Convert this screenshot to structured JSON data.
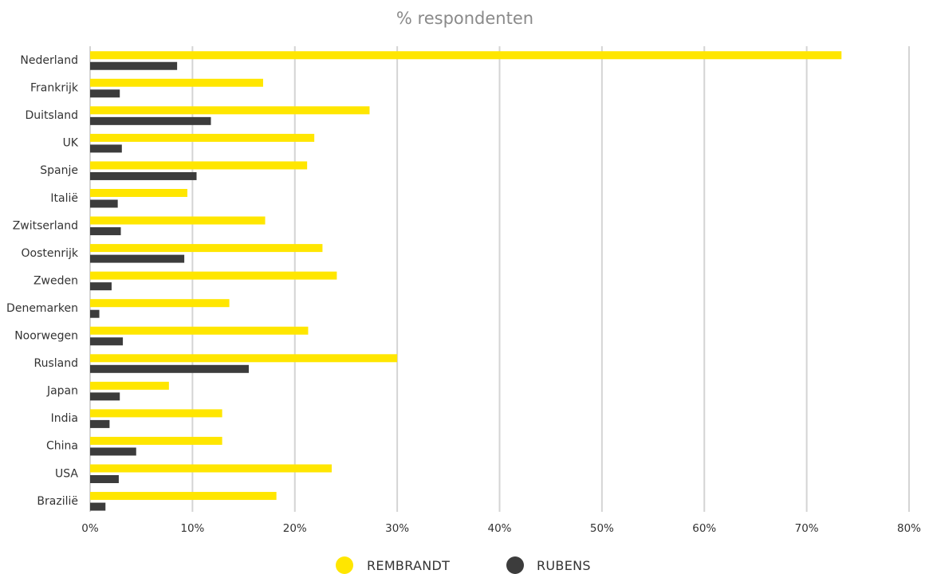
{
  "chart_data": {
    "type": "bar",
    "orientation": "horizontal",
    "title": "% respondenten",
    "xlabel": "",
    "ylabel": "",
    "categories": [
      "Nederland",
      "Frankrijk",
      "Duitsland",
      "UK",
      "Spanje",
      "Italië",
      "Zwitserland",
      "Oostenrijk",
      "Zweden",
      "Denemarken",
      "Noorwegen",
      "Rusland",
      "Japan",
      "India",
      "China",
      "USA",
      "Brazilië"
    ],
    "series": [
      {
        "name": "REMBRANDT",
        "color": "#ffe600",
        "values": [
          73.4,
          16.9,
          27.3,
          21.9,
          21.2,
          9.5,
          17.1,
          22.7,
          24.1,
          13.6,
          21.3,
          30.0,
          7.7,
          12.9,
          12.9,
          23.6,
          18.2
        ]
      },
      {
        "name": "RUBENS",
        "color": "#3c3c3c",
        "values": [
          8.5,
          2.9,
          11.8,
          3.1,
          10.4,
          2.7,
          3.0,
          9.2,
          2.1,
          0.9,
          3.2,
          15.5,
          2.9,
          1.9,
          4.5,
          2.8,
          1.5
        ]
      }
    ],
    "xlim": [
      0,
      80
    ],
    "xticks": [
      0,
      10,
      20,
      30,
      40,
      50,
      60,
      70,
      80
    ],
    "tick_suffix": "%",
    "grid": true,
    "legend_position": "bottom-center",
    "grid_color": "#d4d4d4"
  }
}
